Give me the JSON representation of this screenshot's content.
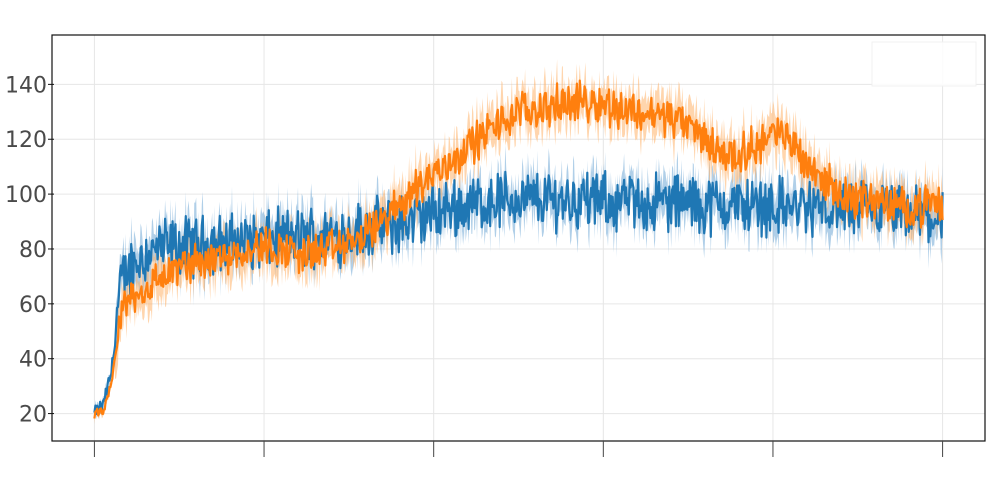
{
  "chart_data": {
    "type": "line",
    "title": "",
    "xlabel": "",
    "ylabel": "",
    "x_ticks": [
      0,
      1,
      2,
      3,
      4,
      5
    ],
    "x_tick_labels": [
      "",
      "",
      "",
      "",
      "",
      ""
    ],
    "y_ticks": [
      20,
      40,
      60,
      80,
      100,
      120,
      140
    ],
    "y_tick_labels": [
      "20",
      "40",
      "60",
      "80",
      "100",
      "120",
      "140"
    ],
    "xlim": [
      -0.25,
      5.25
    ],
    "ylim": [
      10,
      158
    ],
    "grid": true,
    "legend": "top-right, entries not legible",
    "series": [
      {
        "color": "#1f77b4",
        "band_color": "#6fa8d6",
        "x": [
          0,
          0.05,
          0.1,
          0.15,
          0.2,
          0.3,
          0.4,
          0.5,
          0.6,
          0.7,
          0.8,
          0.9,
          1.0,
          1.1,
          1.2,
          1.3,
          1.4,
          1.5,
          1.6,
          1.7,
          1.8,
          1.9,
          2.0,
          2.1,
          2.2,
          2.3,
          2.4,
          2.5,
          2.6,
          2.7,
          2.8,
          2.9,
          3.0,
          3.1,
          3.2,
          3.3,
          3.4,
          3.5,
          3.6,
          3.7,
          3.8,
          3.9,
          4.0,
          4.1,
          4.2,
          4.3,
          4.4,
          4.5,
          4.6,
          4.7,
          4.8,
          4.9,
          5.0
        ],
        "values": [
          20,
          23,
          35,
          65,
          73,
          78,
          80,
          81,
          81,
          82,
          82,
          83,
          83,
          84,
          84,
          85,
          85,
          86,
          87,
          88,
          89,
          91,
          93,
          95,
          96,
          97,
          98,
          98,
          98,
          98,
          98,
          98,
          97,
          97,
          97,
          97,
          97,
          97,
          96,
          96,
          96,
          96,
          96,
          95,
          95,
          95,
          95,
          94,
          94,
          93,
          92,
          92,
          91
        ]
      },
      {
        "color": "#ff7f0e",
        "band_color": "#ffb36a",
        "x": [
          0,
          0.05,
          0.1,
          0.15,
          0.2,
          0.3,
          0.4,
          0.5,
          0.6,
          0.7,
          0.8,
          0.9,
          1.0,
          1.1,
          1.2,
          1.3,
          1.4,
          1.5,
          1.6,
          1.7,
          1.8,
          1.9,
          2.0,
          2.1,
          2.2,
          2.3,
          2.4,
          2.5,
          2.6,
          2.7,
          2.8,
          2.9,
          3.0,
          3.1,
          3.2,
          3.3,
          3.4,
          3.5,
          3.6,
          3.7,
          3.8,
          3.9,
          4.0,
          4.1,
          4.2,
          4.3,
          4.4,
          4.5,
          4.6,
          4.7,
          4.8,
          4.9,
          5.0
        ],
        "values": [
          20,
          20,
          30,
          55,
          62,
          65,
          70,
          73,
          75,
          77,
          78,
          80,
          81,
          80,
          78,
          79,
          80,
          82,
          85,
          90,
          96,
          103,
          107,
          112,
          117,
          122,
          126,
          130,
          131,
          132,
          133,
          134,
          133,
          131,
          130,
          129,
          128,
          125,
          120,
          115,
          114,
          118,
          122,
          120,
          112,
          105,
          100,
          98,
          98,
          96,
          95,
          96,
          96
        ]
      }
    ]
  },
  "legend": {
    "entries": []
  }
}
